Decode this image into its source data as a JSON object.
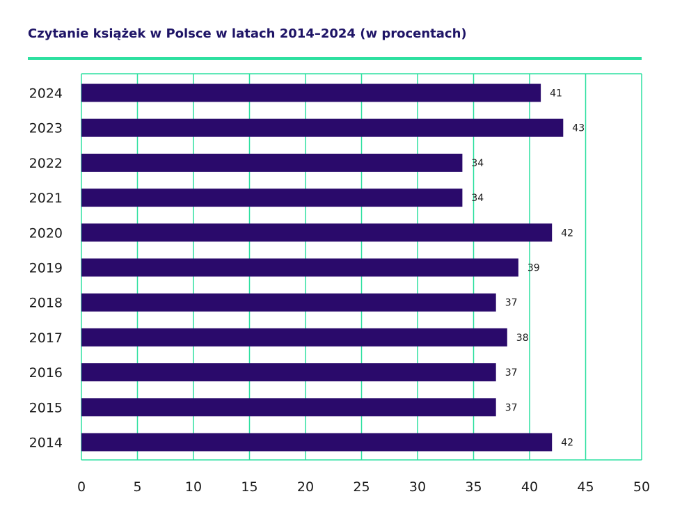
{
  "title": "Czytanie książek w Polsce w latach 2014–2024 (w procentach)",
  "colors": {
    "bar": "#2a0a6b",
    "grid": "#2de0a0",
    "title": "#1e1466",
    "rule": "#2de0a0"
  },
  "chart_data": {
    "type": "bar",
    "orientation": "horizontal",
    "title": "Czytanie książek w Polsce w latach 2014–2024 (w procentach)",
    "xlabel": "",
    "ylabel": "",
    "categories": [
      "2024",
      "2023",
      "2022",
      "2021",
      "2020",
      "2019",
      "2018",
      "2017",
      "2016",
      "2015",
      "2014"
    ],
    "values": [
      41,
      43,
      34,
      34,
      42,
      39,
      37,
      38,
      37,
      37,
      42
    ],
    "data_labels": [
      "41",
      "43",
      "34",
      "34",
      "42",
      "39",
      "37",
      "38",
      "37",
      "37",
      "42"
    ],
    "xlim": [
      0,
      50
    ],
    "x_ticks": [
      0,
      5,
      10,
      15,
      20,
      25,
      30,
      35,
      40,
      45,
      50
    ],
    "x_tick_labels": [
      "0",
      "5",
      "10",
      "15",
      "20",
      "25",
      "30",
      "35",
      "40",
      "45",
      "50"
    ],
    "grid": true,
    "legend": "none"
  }
}
